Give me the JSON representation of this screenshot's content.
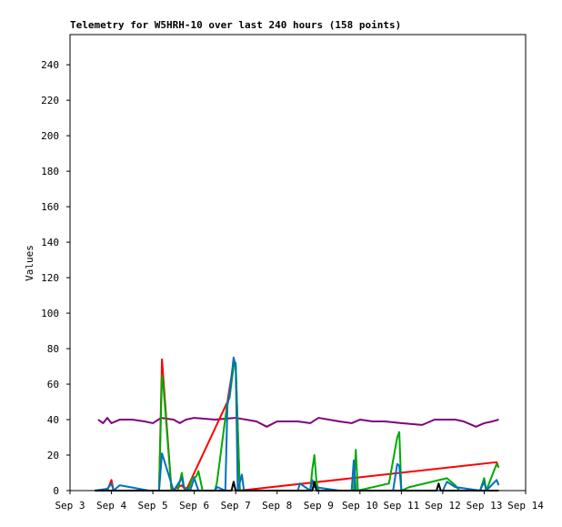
{
  "chart_data": {
    "type": "line",
    "title": "Telemetry for W5HRH-10 over last 240 hours (158 points)",
    "y_label": "Values",
    "xlim": [
      3,
      14
    ],
    "xticks": [
      {
        "value": 3,
        "label": "Sep 3"
      },
      {
        "value": 4,
        "label": "Sep 4"
      },
      {
        "value": 5,
        "label": "Sep 5"
      },
      {
        "value": 6,
        "label": "Sep 6"
      },
      {
        "value": 7,
        "label": "Sep 7"
      },
      {
        "value": 8,
        "label": "Sep 8"
      },
      {
        "value": 9,
        "label": "Sep 9"
      },
      {
        "value": 10,
        "label": "Sep 10"
      },
      {
        "value": 11,
        "label": "Sep 11"
      },
      {
        "value": 12,
        "label": "Sep 12"
      },
      {
        "value": 13,
        "label": "Sep 13"
      },
      {
        "value": 14,
        "label": "Sep 14"
      }
    ],
    "ylim": [
      0,
      257
    ],
    "yticks": [
      0,
      20,
      40,
      60,
      80,
      100,
      120,
      140,
      160,
      180,
      200,
      220,
      240
    ],
    "series": [
      {
        "color": "#800080",
        "x": [
          3.68,
          3.8,
          3.9,
          4.0,
          4.2,
          4.5,
          4.8,
          5.0,
          5.2,
          5.5,
          5.65,
          5.8,
          6.0,
          6.5,
          7.0,
          7.5,
          7.75,
          8.0,
          8.5,
          8.8,
          9.0,
          9.5,
          9.8,
          10.0,
          10.3,
          10.6,
          11.0,
          11.5,
          11.8,
          12.3,
          12.5,
          12.8,
          13.0,
          13.2,
          13.35
        ],
        "values": [
          40,
          38,
          41,
          38,
          40,
          40,
          39,
          38,
          41,
          40,
          38,
          40,
          41,
          40,
          41,
          39,
          36,
          39,
          39,
          38,
          41,
          39,
          38,
          40,
          39,
          39,
          38,
          37,
          40,
          40,
          39,
          36,
          38,
          39,
          40
        ]
      },
      {
        "color": "#ff0000",
        "x": [
          3.9,
          4.0,
          4.05,
          4.9,
          5.15,
          5.22,
          5.45,
          5.7,
          5.8,
          6.8,
          6.95,
          7.0,
          7.1,
          13.3,
          13.35
        ],
        "values": [
          0,
          6,
          0,
          0,
          0,
          74,
          0,
          3,
          0,
          50,
          72,
          70,
          0,
          16,
          13
        ]
      },
      {
        "color": "#00aa00",
        "x": [
          4.9,
          5.15,
          5.22,
          5.25,
          5.45,
          5.6,
          5.7,
          5.75,
          5.85,
          5.95,
          6.05,
          6.1,
          6.2,
          6.5,
          6.55,
          6.8,
          6.85,
          6.95,
          7.0,
          7.1,
          7.2,
          8.0,
          8.8,
          8.85,
          8.9,
          8.95,
          9.0,
          9.85,
          9.9,
          9.95,
          10.7,
          10.9,
          10.95,
          11.0,
          11.2,
          12.1,
          12.3,
          12.4,
          12.9,
          13.0,
          13.05,
          13.3,
          13.35
        ],
        "values": [
          0,
          0,
          65,
          60,
          0,
          0,
          10,
          2,
          0,
          7,
          8,
          11,
          0,
          0,
          5,
          50,
          52,
          70,
          72,
          0,
          0,
          0,
          0,
          12,
          20,
          5,
          0,
          0,
          23,
          0,
          4,
          30,
          33,
          0,
          2,
          7,
          3,
          0,
          0,
          7,
          0,
          15,
          13
        ]
      },
      {
        "color": "#0070c0",
        "x": [
          3.6,
          3.9,
          4.0,
          4.05,
          4.2,
          4.9,
          5.15,
          5.22,
          5.5,
          5.7,
          5.75,
          5.9,
          6.0,
          6.1,
          6.5,
          6.55,
          6.75,
          6.8,
          6.85,
          6.95,
          7.0,
          7.05,
          7.15,
          7.2,
          7.3,
          8.0,
          8.5,
          8.55,
          8.8,
          8.85,
          8.9,
          9.5,
          9.8,
          9.85,
          9.9,
          10.8,
          10.9,
          10.95,
          11.0,
          11.5,
          12.0,
          12.1,
          12.3,
          12.9,
          13.0,
          13.05,
          13.3,
          13.35
        ],
        "values": [
          0,
          1,
          4,
          0,
          3,
          0,
          0,
          21,
          0,
          7,
          2,
          0,
          7,
          0,
          0,
          2,
          0,
          48,
          54,
          75,
          70,
          0,
          9,
          0,
          0,
          0,
          0,
          4,
          0,
          6,
          2,
          0,
          0,
          17,
          0,
          0,
          15,
          14,
          0,
          0,
          0,
          5,
          2,
          0,
          5,
          0,
          6,
          3
        ]
      },
      {
        "color": "#000000",
        "x": [
          3.6,
          6.9,
          6.95,
          7.0,
          8.85,
          8.9,
          8.95,
          11.85,
          11.9,
          11.95,
          13.35
        ],
        "values": [
          0,
          0,
          5,
          0,
          0,
          5,
          0,
          0,
          4,
          0,
          0
        ]
      }
    ]
  }
}
